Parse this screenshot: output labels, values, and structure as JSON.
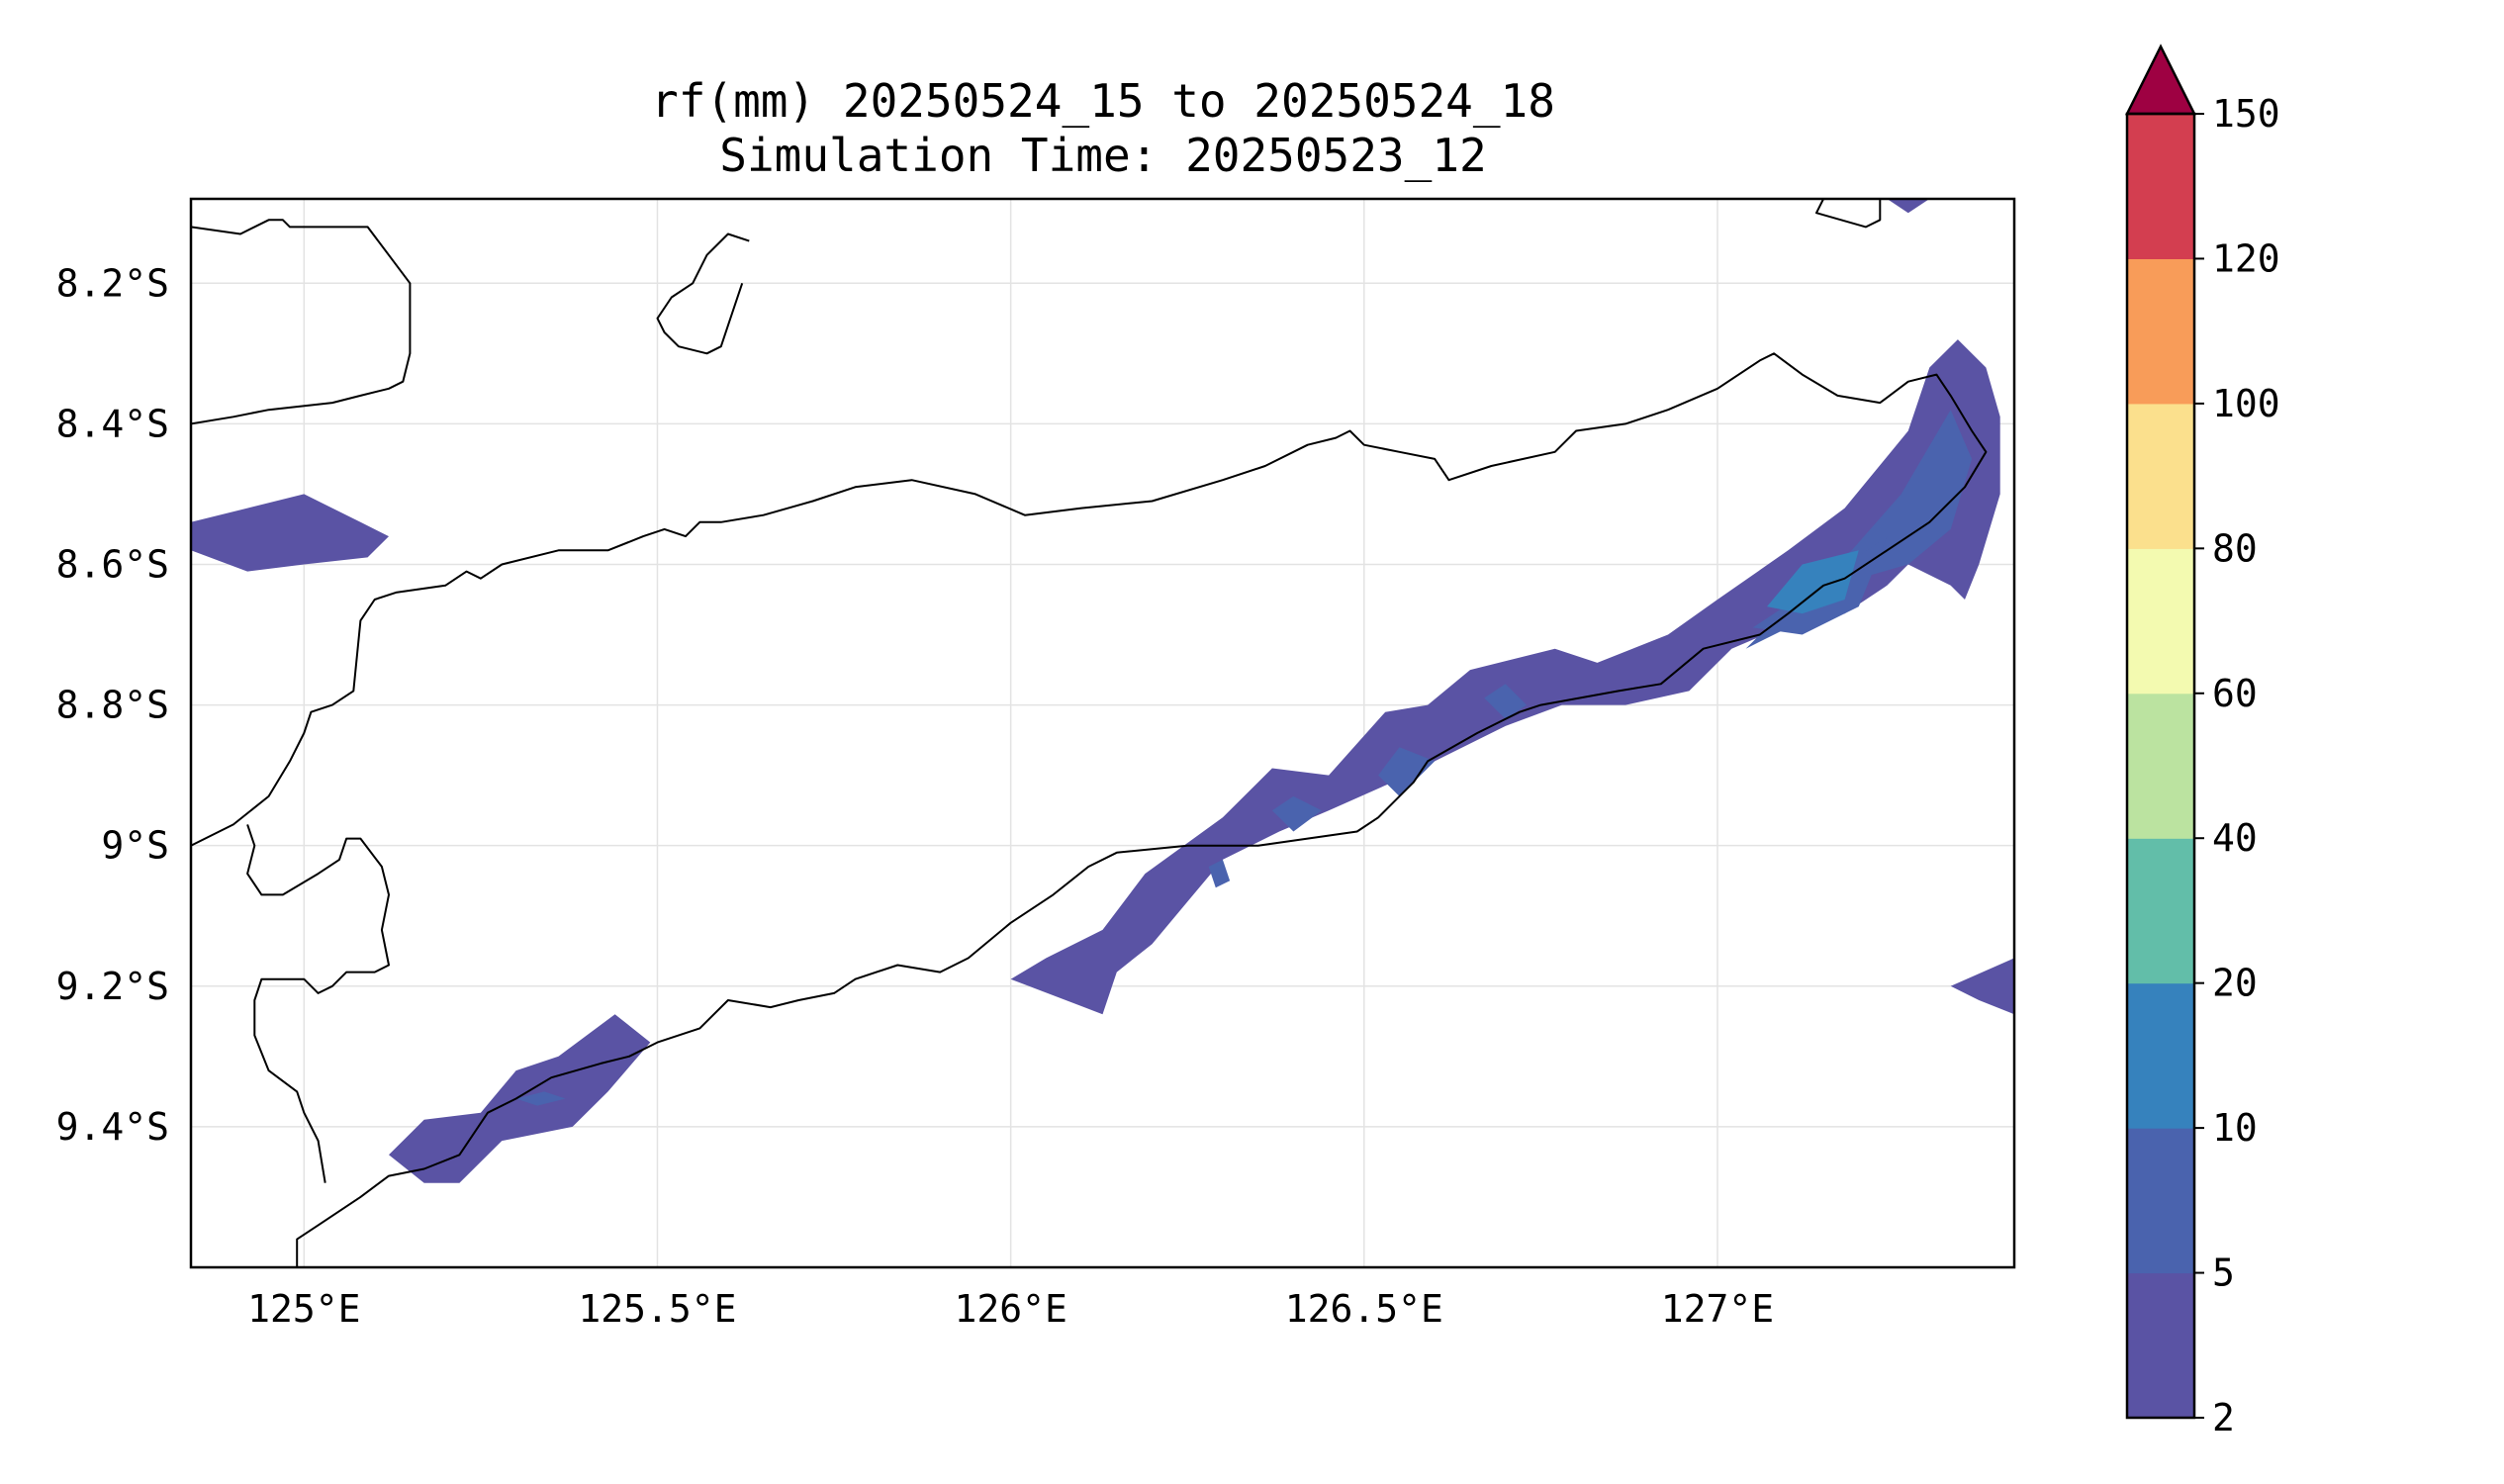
{
  "title": {
    "line1": "rf(mm) 20250524_15 to 20250524_18",
    "line2": "Simulation Time: 20250523_12"
  },
  "map": {
    "lon_range": [
      124.84,
      127.42
    ],
    "lat_range": [
      -9.6,
      -8.08
    ],
    "x_ticks": [
      {
        "lon": 125.0,
        "label": "125°E"
      },
      {
        "lon": 125.5,
        "label": "125.5°E"
      },
      {
        "lon": 126.0,
        "label": "126°E"
      },
      {
        "lon": 126.5,
        "label": "126.5°E"
      },
      {
        "lon": 127.0,
        "label": "127°E"
      }
    ],
    "y_ticks": [
      {
        "lat": -8.2,
        "label": "8.2°S"
      },
      {
        "lat": -8.4,
        "label": "8.4°S"
      },
      {
        "lat": -8.6,
        "label": "8.6°S"
      },
      {
        "lat": -8.8,
        "label": "8.8°S"
      },
      {
        "lat": -9.0,
        "label": "9°S"
      },
      {
        "lat": -9.2,
        "label": "9.2°S"
      },
      {
        "lat": -9.4,
        "label": "9.4°S"
      }
    ],
    "grid": true,
    "coastline_color": "#000000"
  },
  "colorbar": {
    "levels": [
      "2",
      "5",
      "10",
      "20",
      "40",
      "60",
      "80",
      "100",
      "120",
      "150"
    ],
    "colors": [
      "#5a53a4",
      "#4a63ae",
      "#3682bd",
      "#62bea9",
      "#bbe3a0",
      "#f3fab0",
      "#fbe08d",
      "#f89c59",
      "#d33e50"
    ],
    "extend_color": "#9e0142",
    "extend": "max"
  },
  "rainfall_polygons": [
    {
      "name": "rain-area-west-edge",
      "level": 0,
      "points": [
        [
          124.84,
          -8.54
        ],
        [
          124.92,
          -8.52
        ],
        [
          125.0,
          -8.5
        ],
        [
          125.08,
          -8.54
        ],
        [
          125.12,
          -8.56
        ],
        [
          125.09,
          -8.59
        ],
        [
          125.0,
          -8.6
        ],
        [
          124.92,
          -8.61
        ],
        [
          124.84,
          -8.58
        ]
      ]
    },
    {
      "name": "rain-area-southwest",
      "level": 0,
      "points": [
        [
          125.12,
          -9.44
        ],
        [
          125.17,
          -9.39
        ],
        [
          125.25,
          -9.38
        ],
        [
          125.3,
          -9.32
        ],
        [
          125.36,
          -9.3
        ],
        [
          125.44,
          -9.24
        ],
        [
          125.49,
          -9.28
        ],
        [
          125.43,
          -9.35
        ],
        [
          125.38,
          -9.4
        ],
        [
          125.28,
          -9.42
        ],
        [
          125.22,
          -9.48
        ],
        [
          125.17,
          -9.48
        ]
      ]
    },
    {
      "name": "rain-area-main-band",
      "level": 0,
      "points": [
        [
          126.0,
          -9.19
        ],
        [
          126.05,
          -9.16
        ],
        [
          126.13,
          -9.12
        ],
        [
          126.19,
          -9.04
        ],
        [
          126.3,
          -8.96
        ],
        [
          126.37,
          -8.89
        ],
        [
          126.45,
          -8.9
        ],
        [
          126.53,
          -8.81
        ],
        [
          126.59,
          -8.8
        ],
        [
          126.65,
          -8.75
        ],
        [
          126.77,
          -8.72
        ],
        [
          126.83,
          -8.74
        ],
        [
          126.93,
          -8.7
        ],
        [
          127.0,
          -8.65
        ],
        [
          127.1,
          -8.58
        ],
        [
          127.18,
          -8.52
        ],
        [
          127.27,
          -8.41
        ],
        [
          127.3,
          -8.32
        ],
        [
          127.34,
          -8.28
        ],
        [
          127.38,
          -8.32
        ],
        [
          127.4,
          -8.39
        ],
        [
          127.4,
          -8.5
        ],
        [
          127.37,
          -8.6
        ],
        [
          127.35,
          -8.65
        ],
        [
          127.33,
          -8.63
        ],
        [
          127.27,
          -8.6
        ],
        [
          127.24,
          -8.63
        ],
        [
          127.18,
          -8.67
        ],
        [
          127.09,
          -8.69
        ],
        [
          127.02,
          -8.72
        ],
        [
          126.96,
          -8.78
        ],
        [
          126.87,
          -8.8
        ],
        [
          126.78,
          -8.8
        ],
        [
          126.7,
          -8.83
        ],
        [
          126.62,
          -8.87
        ],
        [
          126.54,
          -8.91
        ],
        [
          126.45,
          -8.95
        ],
        [
          126.38,
          -8.98
        ],
        [
          126.3,
          -9.02
        ],
        [
          126.25,
          -9.08
        ],
        [
          126.2,
          -9.14
        ],
        [
          126.15,
          -9.18
        ],
        [
          126.13,
          -9.24
        ]
      ]
    },
    {
      "name": "rain-area-east-edge",
      "level": 0,
      "points": [
        [
          127.33,
          -9.2
        ],
        [
          127.42,
          -9.16
        ],
        [
          127.42,
          -9.24
        ],
        [
          127.37,
          -9.22
        ]
      ]
    },
    {
      "name": "rain-area-north-edge",
      "level": 0,
      "points": [
        [
          127.24,
          -8.08
        ],
        [
          127.3,
          -8.08
        ],
        [
          127.27,
          -8.1
        ]
      ]
    },
    {
      "name": "rain-core-east-1",
      "level": 1,
      "points": [
        [
          127.04,
          -8.72
        ],
        [
          127.12,
          -8.64
        ],
        [
          127.19,
          -8.58
        ],
        [
          127.26,
          -8.5
        ],
        [
          127.33,
          -8.38
        ],
        [
          127.36,
          -8.45
        ],
        [
          127.33,
          -8.55
        ],
        [
          127.27,
          -8.6
        ],
        [
          127.2,
          -8.62
        ],
        [
          127.12,
          -8.68
        ]
      ]
    },
    {
      "name": "rain-core-east-2",
      "level": 1,
      "points": [
        [
          127.05,
          -8.69
        ],
        [
          127.14,
          -8.63
        ],
        [
          127.24,
          -8.56
        ],
        [
          127.2,
          -8.66
        ],
        [
          127.12,
          -8.7
        ]
      ]
    },
    {
      "name": "rain-core-mid-1",
      "level": 1,
      "points": [
        [
          126.37,
          -8.95
        ],
        [
          126.4,
          -8.93
        ],
        [
          126.44,
          -8.95
        ],
        [
          126.4,
          -8.98
        ]
      ]
    },
    {
      "name": "rain-core-mid-2",
      "level": 1,
      "points": [
        [
          126.52,
          -8.9
        ],
        [
          126.55,
          -8.86
        ],
        [
          126.6,
          -8.88
        ],
        [
          126.55,
          -8.93
        ]
      ]
    },
    {
      "name": "rain-core-mid-3",
      "level": 1,
      "points": [
        [
          126.67,
          -8.79
        ],
        [
          126.7,
          -8.77
        ],
        [
          126.73,
          -8.8
        ],
        [
          126.7,
          -8.82
        ]
      ]
    },
    {
      "name": "rain-core-mid-4",
      "level": 1,
      "points": [
        [
          126.28,
          -9.03
        ],
        [
          126.3,
          -9.02
        ],
        [
          126.31,
          -9.05
        ],
        [
          126.29,
          -9.06
        ]
      ]
    },
    {
      "name": "rain-core-southwest",
      "level": 1,
      "points": [
        [
          125.3,
          -9.36
        ],
        [
          125.34,
          -9.35
        ],
        [
          125.37,
          -9.36
        ],
        [
          125.33,
          -9.37
        ]
      ]
    },
    {
      "name": "rain-core-east-3",
      "level": 2,
      "points": [
        [
          127.07,
          -8.66
        ],
        [
          127.12,
          -8.6
        ],
        [
          127.2,
          -8.58
        ],
        [
          127.18,
          -8.65
        ],
        [
          127.12,
          -8.67
        ]
      ]
    }
  ],
  "coastlines": [
    {
      "name": "coastline-timor-north",
      "points": [
        [
          124.84,
          -8.4
        ],
        [
          124.9,
          -8.39
        ],
        [
          124.95,
          -8.38
        ],
        [
          125.04,
          -8.37
        ],
        [
          125.08,
          -8.36
        ],
        [
          125.12,
          -8.35
        ],
        [
          125.14,
          -8.34
        ],
        [
          125.15,
          -8.3
        ],
        [
          125.15,
          -8.2
        ],
        [
          125.12,
          -8.16
        ],
        [
          125.09,
          -8.12
        ],
        [
          125.02,
          -8.12
        ],
        [
          124.98,
          -8.12
        ],
        [
          124.97,
          -8.11
        ],
        [
          124.95,
          -8.11
        ],
        [
          124.91,
          -8.13
        ],
        [
          124.84,
          -8.12
        ]
      ]
    },
    {
      "name": "coastline-timor-main",
      "points": [
        [
          124.84,
          -9.0
        ],
        [
          124.9,
          -8.97
        ],
        [
          124.95,
          -8.93
        ],
        [
          124.98,
          -8.88
        ],
        [
          125.0,
          -8.84
        ],
        [
          125.01,
          -8.81
        ],
        [
          125.04,
          -8.8
        ],
        [
          125.07,
          -8.78
        ],
        [
          125.08,
          -8.68
        ],
        [
          125.1,
          -8.65
        ],
        [
          125.13,
          -8.64
        ],
        [
          125.2,
          -8.63
        ],
        [
          125.23,
          -8.61
        ],
        [
          125.25,
          -8.62
        ],
        [
          125.28,
          -8.6
        ],
        [
          125.36,
          -8.58
        ],
        [
          125.43,
          -8.58
        ],
        [
          125.48,
          -8.56
        ],
        [
          125.51,
          -8.55
        ],
        [
          125.54,
          -8.56
        ],
        [
          125.56,
          -8.54
        ],
        [
          125.59,
          -8.54
        ],
        [
          125.65,
          -8.53
        ],
        [
          125.72,
          -8.51
        ],
        [
          125.78,
          -8.49
        ],
        [
          125.86,
          -8.48
        ],
        [
          125.95,
          -8.5
        ],
        [
          126.02,
          -8.53
        ],
        [
          126.1,
          -8.52
        ],
        [
          126.2,
          -8.51
        ],
        [
          126.3,
          -8.48
        ],
        [
          126.36,
          -8.46
        ],
        [
          126.42,
          -8.43
        ],
        [
          126.46,
          -8.42
        ],
        [
          126.48,
          -8.41
        ],
        [
          126.5,
          -8.43
        ],
        [
          126.55,
          -8.44
        ],
        [
          126.6,
          -8.45
        ],
        [
          126.62,
          -8.48
        ],
        [
          126.68,
          -8.46
        ],
        [
          126.77,
          -8.44
        ],
        [
          126.8,
          -8.41
        ],
        [
          126.87,
          -8.4
        ],
        [
          126.93,
          -8.38
        ],
        [
          127.0,
          -8.35
        ],
        [
          127.06,
          -8.31
        ],
        [
          127.08,
          -8.3
        ],
        [
          127.12,
          -8.33
        ],
        [
          127.17,
          -8.36
        ],
        [
          127.23,
          -8.37
        ],
        [
          127.27,
          -8.34
        ],
        [
          127.31,
          -8.33
        ],
        [
          127.33,
          -8.36
        ],
        [
          127.36,
          -8.41
        ],
        [
          127.38,
          -8.44
        ],
        [
          127.35,
          -8.49
        ],
        [
          127.3,
          -8.54
        ],
        [
          127.24,
          -8.58
        ],
        [
          127.18,
          -8.62
        ],
        [
          127.15,
          -8.63
        ],
        [
          127.1,
          -8.67
        ],
        [
          127.06,
          -8.7
        ],
        [
          126.98,
          -8.72
        ],
        [
          126.92,
          -8.77
        ],
        [
          126.86,
          -8.78
        ],
        [
          126.75,
          -8.8
        ],
        [
          126.72,
          -8.81
        ],
        [
          126.66,
          -8.84
        ],
        [
          126.59,
          -8.88
        ],
        [
          126.57,
          -8.91
        ],
        [
          126.55,
          -8.93
        ],
        [
          126.52,
          -8.96
        ],
        [
          126.49,
          -8.98
        ],
        [
          126.42,
          -8.99
        ],
        [
          126.35,
          -9.0
        ],
        [
          126.25,
          -9.0
        ],
        [
          126.15,
          -9.01
        ],
        [
          126.11,
          -9.03
        ],
        [
          126.06,
          -9.07
        ],
        [
          126.0,
          -9.11
        ],
        [
          125.94,
          -9.16
        ],
        [
          125.9,
          -9.18
        ],
        [
          125.84,
          -9.17
        ],
        [
          125.78,
          -9.19
        ],
        [
          125.75,
          -9.21
        ],
        [
          125.7,
          -9.22
        ],
        [
          125.66,
          -9.23
        ],
        [
          125.6,
          -9.22
        ],
        [
          125.56,
          -9.26
        ],
        [
          125.5,
          -9.28
        ],
        [
          125.46,
          -9.3
        ],
        [
          125.42,
          -9.31
        ],
        [
          125.35,
          -9.33
        ],
        [
          125.3,
          -9.36
        ],
        [
          125.26,
          -9.38
        ],
        [
          125.22,
          -9.44
        ],
        [
          125.17,
          -9.46
        ],
        [
          125.12,
          -9.47
        ],
        [
          125.08,
          -9.5
        ],
        [
          125.02,
          -9.54
        ],
        [
          124.99,
          -9.56
        ],
        [
          124.99,
          -9.6
        ]
      ]
    },
    {
      "name": "coastline-oecusse",
      "points": [
        [
          124.92,
          -8.97
        ],
        [
          124.93,
          -9.0
        ],
        [
          124.92,
          -9.04
        ],
        [
          124.94,
          -9.07
        ],
        [
          124.97,
          -9.07
        ],
        [
          125.02,
          -9.04
        ],
        [
          125.05,
          -9.02
        ],
        [
          125.06,
          -8.99
        ],
        [
          125.08,
          -8.99
        ],
        [
          125.11,
          -9.03
        ],
        [
          125.12,
          -9.07
        ],
        [
          125.11,
          -9.12
        ],
        [
          125.12,
          -9.17
        ],
        [
          125.1,
          -9.18
        ],
        [
          125.06,
          -9.18
        ],
        [
          125.04,
          -9.2
        ],
        [
          125.02,
          -9.21
        ],
        [
          125.0,
          -9.19
        ],
        [
          124.97,
          -9.19
        ],
        [
          124.94,
          -9.19
        ],
        [
          124.93,
          -9.22
        ],
        [
          124.93,
          -9.27
        ],
        [
          124.95,
          -9.32
        ],
        [
          124.99,
          -9.35
        ],
        [
          125.0,
          -9.38
        ],
        [
          125.02,
          -9.42
        ],
        [
          125.03,
          -9.48
        ]
      ]
    },
    {
      "name": "coastline-atauro-island",
      "points": [
        [
          125.63,
          -8.14
        ],
        [
          125.6,
          -8.13
        ],
        [
          125.57,
          -8.16
        ],
        [
          125.55,
          -8.2
        ],
        [
          125.52,
          -8.22
        ],
        [
          125.5,
          -8.25
        ],
        [
          125.51,
          -8.27
        ],
        [
          125.53,
          -8.29
        ],
        [
          125.57,
          -8.3
        ],
        [
          125.59,
          -8.29
        ],
        [
          125.6,
          -8.26
        ],
        [
          125.62,
          -8.2
        ]
      ]
    },
    {
      "name": "coastline-north-islet",
      "points": [
        [
          127.15,
          -8.08
        ],
        [
          127.14,
          -8.1
        ],
        [
          127.21,
          -8.12
        ],
        [
          127.23,
          -8.11
        ],
        [
          127.23,
          -8.08
        ]
      ]
    }
  ]
}
